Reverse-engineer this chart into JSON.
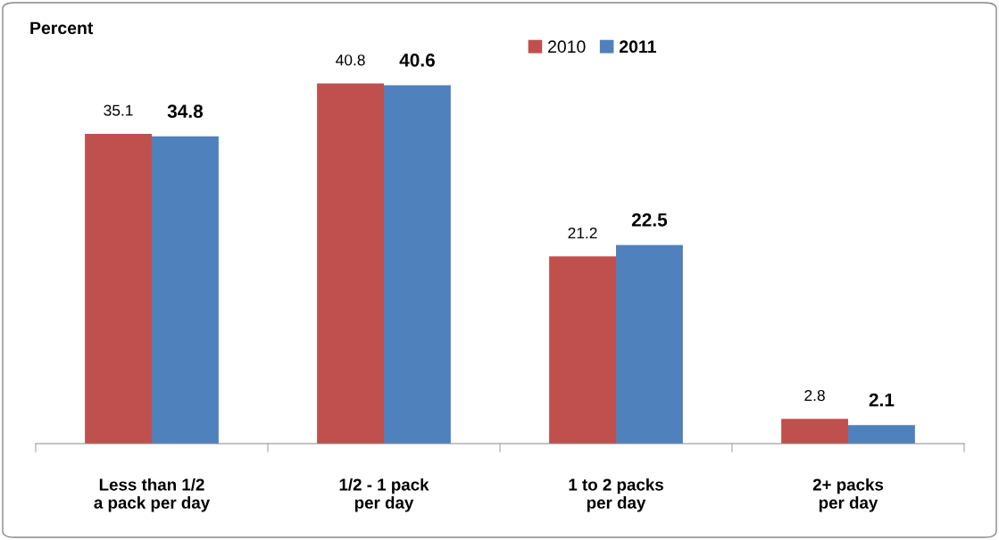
{
  "chart_data": {
    "type": "bar",
    "ylabel": "Percent",
    "categories": [
      "Less than 1/2\na pack per day",
      "1/2 - 1 pack\nper day",
      "1 to 2 packs\nper day",
      "2+ packs\nper day"
    ],
    "series": [
      {
        "name": "2010",
        "color": "#c0504d",
        "values": [
          35.1,
          40.8,
          21.2,
          2.8
        ]
      },
      {
        "name": "2011",
        "color": "#4f81bd",
        "values": [
          34.8,
          40.6,
          22.5,
          2.1
        ]
      }
    ],
    "data_labels": true,
    "legend": "top",
    "grid": false,
    "relative": false
  }
}
